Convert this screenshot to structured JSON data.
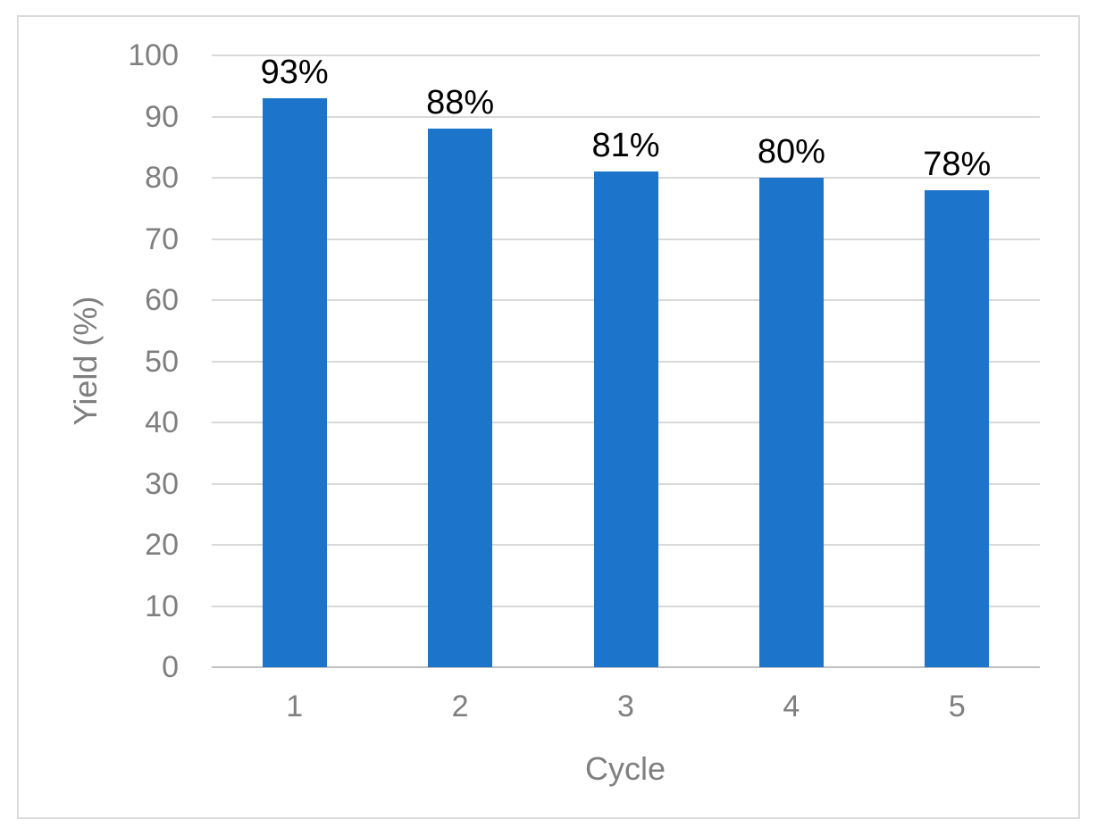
{
  "chart_data": {
    "type": "bar",
    "title": "",
    "categories": [
      "1",
      "2",
      "3",
      "4",
      "5"
    ],
    "values": [
      93,
      88,
      81,
      80,
      78
    ],
    "data_labels": [
      "93%",
      "88%",
      "81%",
      "80%",
      "78%"
    ],
    "xlabel": "Cycle",
    "ylabel": "Yield (%)",
    "ylim": [
      0,
      100
    ],
    "y_ticks": [
      0,
      10,
      20,
      30,
      40,
      50,
      60,
      70,
      80,
      90,
      100
    ],
    "grid": "horizontal",
    "legend": "none",
    "bar_color": "#1C74CB"
  },
  "colors": {
    "bar": "#1C74CB",
    "gridline": "#D9D9D9",
    "axis_line": "#C0C0C0",
    "tick_text": "#7F7F7F",
    "data_label_text": "#000000",
    "frame_border": "#DBDBDB",
    "background": "#FFFFFF"
  }
}
